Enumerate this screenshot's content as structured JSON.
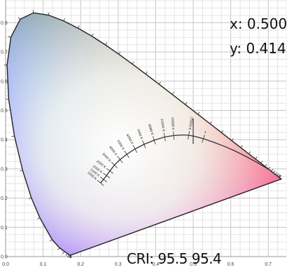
{
  "readout": {
    "x_label": "x: 0.500",
    "y_label": "y: 0.414",
    "cri_label": "CRI: 95.5 95.4"
  },
  "chart_data": {
    "type": "scatter",
    "title": "",
    "xlabel": "",
    "ylabel": "",
    "xlim": [
      0.0,
      0.75
    ],
    "ylim": [
      0.0,
      0.85
    ],
    "x_ticks": [
      "0.0",
      "0.1",
      "0.2",
      "0.3",
      "0.4",
      "0.5",
      "0.6",
      "0.7"
    ],
    "y_ticks": [
      "0.0",
      "0.1",
      "0.2",
      "0.3",
      "0.4",
      "0.5",
      "0.6",
      "0.7",
      "0.8"
    ],
    "grid": true,
    "spectral_locus": {
      "x": [
        0.1741,
        0.1738,
        0.1733,
        0.1726,
        0.1714,
        0.1689,
        0.1644,
        0.1566,
        0.144,
        0.1241,
        0.0913,
        0.0687,
        0.0454,
        0.0235,
        0.0082,
        0.0039,
        0.0139,
        0.0389,
        0.0743,
        0.1142,
        0.1547,
        0.1929,
        0.2296,
        0.2658,
        0.3016,
        0.3373,
        0.3731,
        0.4087,
        0.4441,
        0.4788,
        0.5125,
        0.5448,
        0.5752,
        0.6029,
        0.627,
        0.6482,
        0.6658,
        0.6801,
        0.6915,
        0.7006,
        0.7079,
        0.714,
        0.719,
        0.723,
        0.726,
        0.7283,
        0.73,
        0.7347
      ],
      "y": [
        0.005,
        0.0049,
        0.0048,
        0.0048,
        0.0051,
        0.0069,
        0.0109,
        0.0177,
        0.0297,
        0.0578,
        0.1327,
        0.2007,
        0.295,
        0.4127,
        0.5384,
        0.6548,
        0.7502,
        0.812,
        0.8338,
        0.8262,
        0.8059,
        0.7816,
        0.7543,
        0.7243,
        0.6923,
        0.6589,
        0.6245,
        0.5896,
        0.5547,
        0.5202,
        0.4866,
        0.4544,
        0.4242,
        0.3965,
        0.3725,
        0.3514,
        0.334,
        0.3197,
        0.3083,
        0.2993,
        0.292,
        0.2859,
        0.2809,
        0.277,
        0.274,
        0.2717,
        0.27,
        0.2653
      ]
    },
    "planckian_locus": {
      "x": [
        0.253,
        0.261,
        0.269,
        0.278,
        0.29,
        0.305,
        0.323,
        0.345,
        0.369,
        0.396,
        0.424,
        0.448,
        0.47,
        0.488,
        0.505,
        0.527,
        0.555,
        0.585,
        0.61,
        0.64,
        0.67,
        0.7
      ],
      "y": [
        0.252,
        0.264,
        0.277,
        0.293,
        0.313,
        0.332,
        0.35,
        0.368,
        0.384,
        0.398,
        0.409,
        0.414,
        0.416,
        0.415,
        0.411,
        0.403,
        0.391,
        0.376,
        0.362,
        0.343,
        0.322,
        0.299
      ]
    },
    "isotherm_labels": [
      "1000 K",
      "1500 K",
      "2000 K",
      "2500 K",
      "3000 K",
      "4000 K",
      "5000 K",
      "6000 K",
      "7000 K",
      "8000 K",
      "10000 K",
      "15000 K",
      "25000 K",
      "∞"
    ],
    "marker": {
      "x": 0.5,
      "y": 0.414
    },
    "colors": {
      "grid": "#cfcfcf",
      "locus": "#222222",
      "planck": "#333333",
      "axis_text": "#444444"
    }
  }
}
